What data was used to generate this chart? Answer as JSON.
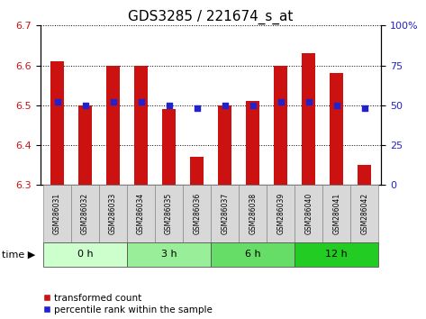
{
  "title": "GDS3285 / 221674_s_at",
  "samples": [
    "GSM286031",
    "GSM286032",
    "GSM286033",
    "GSM286034",
    "GSM286035",
    "GSM286036",
    "GSM286037",
    "GSM286038",
    "GSM286039",
    "GSM286040",
    "GSM286041",
    "GSM286042"
  ],
  "red_values": [
    6.61,
    6.5,
    6.6,
    6.6,
    6.49,
    6.37,
    6.5,
    6.51,
    6.6,
    6.63,
    6.58,
    6.35
  ],
  "blue_percentiles": [
    52,
    50,
    52,
    52,
    50,
    48,
    50,
    50,
    52,
    52,
    50,
    48
  ],
  "ylim_left": [
    6.3,
    6.7
  ],
  "ylim_right": [
    0,
    100
  ],
  "yticks_left": [
    6.3,
    6.4,
    6.5,
    6.6,
    6.7
  ],
  "yticks_right": [
    0,
    25,
    50,
    75,
    100
  ],
  "groups": [
    {
      "label": "0 h",
      "start": 0,
      "end": 3
    },
    {
      "label": "3 h",
      "start": 3,
      "end": 6
    },
    {
      "label": "6 h",
      "start": 6,
      "end": 9
    },
    {
      "label": "12 h",
      "start": 9,
      "end": 12
    }
  ],
  "group_colors": [
    "#ccffcc",
    "#99ee99",
    "#66dd66",
    "#22cc22"
  ],
  "bar_color": "#cc1111",
  "blue_color": "#2222cc",
  "bar_width": 0.5,
  "bar_bottom": 6.3,
  "background_color": "#ffffff",
  "title_fontsize": 11,
  "tick_label_fontsize": 8,
  "time_label": "time ▶",
  "legend_red": "transformed count",
  "legend_blue": "percentile rank within the sample"
}
